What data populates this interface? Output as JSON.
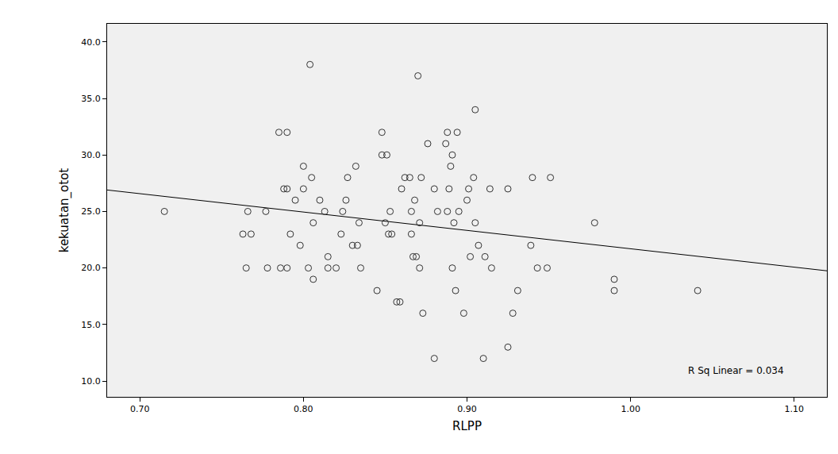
{
  "chart_data": {
    "type": "scatter",
    "x_label": "RLPP",
    "y_label": "kekuatan_otot",
    "annotations": [
      "R Sq Linear = 0.034"
    ],
    "marker": "circle-open",
    "color": "#333333",
    "x": [
      0.715,
      0.763,
      0.768,
      0.766,
      0.765,
      0.777,
      0.778,
      0.785,
      0.79,
      0.79,
      0.788,
      0.786,
      0.79,
      0.792,
      0.795,
      0.798,
      0.8,
      0.8,
      0.803,
      0.804,
      0.805,
      0.806,
      0.806,
      0.81,
      0.813,
      0.815,
      0.815,
      0.82,
      0.823,
      0.824,
      0.826,
      0.827,
      0.83,
      0.832,
      0.833,
      0.834,
      0.835,
      0.845,
      0.848,
      0.848,
      0.851,
      0.85,
      0.852,
      0.854,
      0.853,
      0.857,
      0.859,
      0.86,
      0.862,
      0.865,
      0.866,
      0.866,
      0.867,
      0.869,
      0.868,
      0.87,
      0.871,
      0.871,
      0.872,
      0.873,
      0.876,
      0.88,
      0.88,
      0.882,
      0.887,
      0.888,
      0.889,
      0.888,
      0.89,
      0.891,
      0.891,
      0.892,
      0.893,
      0.894,
      0.895,
      0.898,
      0.9,
      0.901,
      0.902,
      0.904,
      0.905,
      0.905,
      0.907,
      0.91,
      0.911,
      0.914,
      0.915,
      0.925,
      0.925,
      0.928,
      0.931,
      0.94,
      0.939,
      0.943,
      0.949,
      0.951,
      0.978,
      0.99,
      0.99,
      1.041
    ],
    "values": [
      25,
      23,
      23,
      25,
      20,
      25,
      20,
      32,
      32,
      27,
      27,
      20,
      20,
      23,
      26,
      22,
      29,
      27,
      20,
      38,
      28,
      24,
      19,
      26,
      25,
      21,
      20,
      20,
      23,
      25,
      26,
      28,
      22,
      29,
      22,
      24,
      20,
      18,
      32,
      30,
      30,
      24,
      23,
      23,
      25,
      17,
      17,
      27,
      28,
      28,
      25,
      23,
      21,
      21,
      26,
      37,
      20,
      24,
      28,
      16,
      31,
      12,
      27,
      25,
      31,
      32,
      27,
      25,
      29,
      30,
      20,
      24,
      18,
      32,
      25,
      16,
      26,
      27,
      21,
      28,
      34,
      24,
      22,
      12,
      21,
      27,
      20,
      27,
      13,
      16,
      18,
      28,
      22,
      20,
      20,
      28,
      24,
      19,
      18,
      18
    ],
    "fit_line": {
      "x": [
        0.68,
        1.12
      ],
      "y": [
        26.9,
        19.75
      ],
      "color": "#000000",
      "line_style": "solid"
    },
    "xlim": [
      0.68,
      1.12
    ],
    "ylim": [
      8.6,
      41.6
    ],
    "xticks": [
      {
        "value": 0.7,
        "label": "0.70"
      },
      {
        "value": 0.8,
        "label": "0.80"
      },
      {
        "value": 0.9,
        "label": "0.90"
      },
      {
        "value": 1.0,
        "label": "1.00"
      },
      {
        "value": 1.1,
        "label": "1.10"
      }
    ],
    "yticks": [
      {
        "value": 10,
        "label": "10.0"
      },
      {
        "value": 15,
        "label": "15.0"
      },
      {
        "value": 20,
        "label": "20.0"
      },
      {
        "value": 25,
        "label": "25.0"
      },
      {
        "value": 30,
        "label": "30.0"
      },
      {
        "value": 35,
        "label": "35.0"
      },
      {
        "value": 40,
        "label": "40.0"
      }
    ],
    "grid": false
  }
}
